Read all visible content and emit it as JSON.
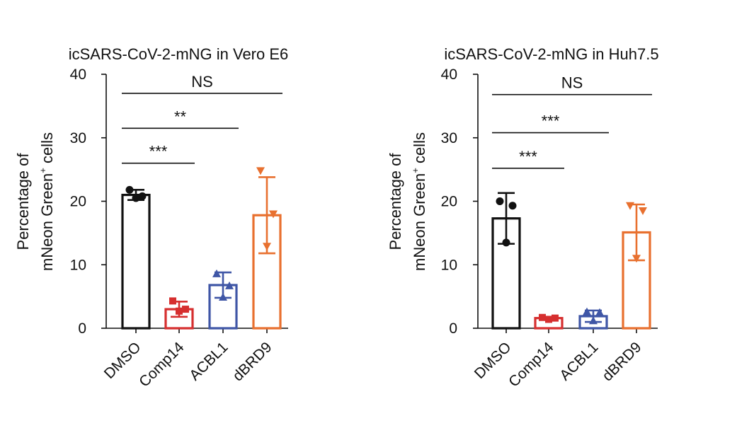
{
  "chart_data": [
    {
      "type": "bar",
      "title": "icSARS-CoV-2-mNG in Vero E6",
      "ylabel_line1": "Percentage of",
      "ylabel_line2": "mNeon Green",
      "ylabel_sup": "+",
      "ylabel_suffix": " cells",
      "ylim": [
        0,
        40
      ],
      "yticks": [
        0,
        10,
        20,
        30,
        40
      ],
      "categories": [
        "DMSO",
        "Comp14",
        "ACBL1",
        "dBRD9"
      ],
      "colors": [
        "#111111",
        "#d62f2f",
        "#3f56a6",
        "#e8702f"
      ],
      "markers": [
        "circle",
        "square",
        "triangle-up",
        "triangle-down"
      ],
      "means": [
        21.0,
        3.0,
        6.8,
        17.8
      ],
      "sd": [
        0.8,
        1.2,
        2.0,
        6.0
      ],
      "points": [
        [
          21.8,
          20.8,
          20.5
        ],
        [
          4.3,
          3.0,
          2.7
        ],
        [
          8.6,
          6.7,
          4.9
        ],
        [
          24.8,
          18.0,
          12.9
        ]
      ],
      "significance": [
        {
          "label": "***",
          "from": 0,
          "to": 1,
          "y": 26.0
        },
        {
          "label": "**",
          "from": 0,
          "to": 2,
          "y": 31.5
        },
        {
          "label": "NS",
          "from": 0,
          "to": 3,
          "y": 37.0
        }
      ]
    },
    {
      "type": "bar",
      "title": "icSARS-CoV-2-mNG in Huh7.5",
      "ylabel_line1": "Percentage of",
      "ylabel_line2": "mNeon Green",
      "ylabel_sup": "+",
      "ylabel_suffix": " cells",
      "ylim": [
        0,
        40
      ],
      "yticks": [
        0,
        10,
        20,
        30,
        40
      ],
      "categories": [
        "DMSO",
        "Comp14",
        "ACBL1",
        "dBRD9"
      ],
      "colors": [
        "#111111",
        "#d62f2f",
        "#3f56a6",
        "#e8702f"
      ],
      "markers": [
        "circle",
        "square",
        "triangle-up",
        "triangle-down"
      ],
      "means": [
        17.3,
        1.6,
        1.9,
        15.1
      ],
      "sd": [
        4.0,
        0.2,
        0.9,
        4.4
      ],
      "points": [
        [
          20.0,
          19.3,
          13.5
        ],
        [
          1.7,
          1.6,
          1.4
        ],
        [
          2.6,
          2.5,
          1.2
        ],
        [
          19.3,
          18.5,
          11.0
        ]
      ],
      "significance": [
        {
          "label": "***",
          "from": 0,
          "to": 1,
          "y": 25.2
        },
        {
          "label": "***",
          "from": 0,
          "to": 2,
          "y": 30.8
        },
        {
          "label": "NS",
          "from": 0,
          "to": 3,
          "y": 36.8
        }
      ]
    }
  ]
}
